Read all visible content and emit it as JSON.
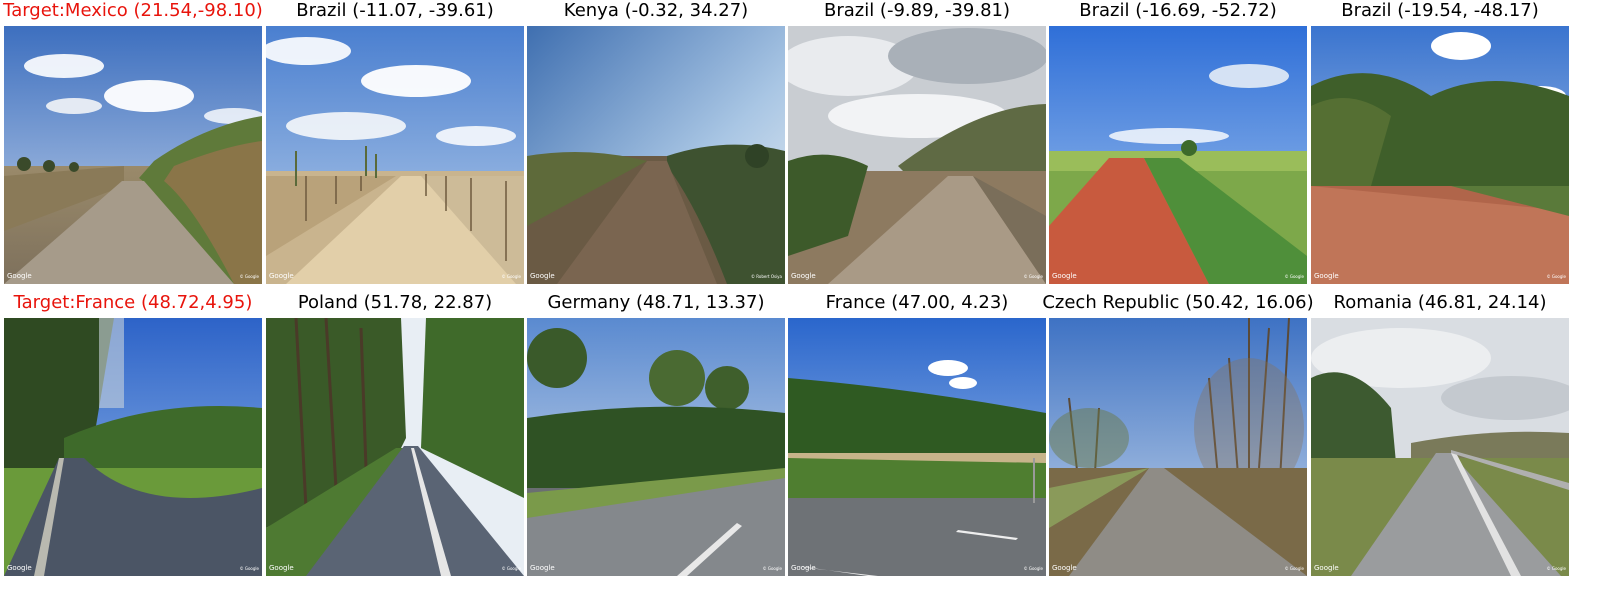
{
  "rows": [
    {
      "cells": [
        {
          "label": "Target:Mexico (21.54,-98.10)",
          "is_target": true,
          "scene": "dirt-road-hedge",
          "watermark_left": "Google",
          "watermark_right": "© Google"
        },
        {
          "label": "Brazil (-11.07, -39.61)",
          "is_target": false,
          "scene": "sand-road-fence",
          "watermark_left": "Google",
          "watermark_right": "© Google"
        },
        {
          "label": "Kenya (-0.32, 34.27)",
          "is_target": false,
          "scene": "dirt-track-savanna",
          "watermark_left": "Google",
          "watermark_right": "© Robert Osiya"
        },
        {
          "label": "Brazil (-9.89, -39.81)",
          "is_target": false,
          "scene": "dirt-road-hill",
          "watermark_left": "Google",
          "watermark_right": "© Google"
        },
        {
          "label": "Brazil (-16.69, -52.72)",
          "is_target": false,
          "scene": "red-dirt-road-field",
          "watermark_left": "Google",
          "watermark_right": "© Google"
        },
        {
          "label": "Brazil (-19.54, -48.17)",
          "is_target": false,
          "scene": "red-dirt-bush",
          "watermark_left": "Google",
          "watermark_right": "© Google"
        }
      ]
    },
    {
      "cells": [
        {
          "label": "Target:France (48.72,4.95)",
          "is_target": true,
          "scene": "paved-lane-trees",
          "watermark_left": "Google",
          "watermark_right": "© Google"
        },
        {
          "label": "Poland (51.78, 22.87)",
          "is_target": false,
          "scene": "forest-road",
          "watermark_left": "Google",
          "watermark_right": "© Google"
        },
        {
          "label": "Germany (48.71, 13.37)",
          "is_target": false,
          "scene": "road-hedge-trees",
          "watermark_left": "Google",
          "watermark_right": "© Google"
        },
        {
          "label": "France (47.00, 4.23)",
          "is_target": false,
          "scene": "road-treeline-field",
          "watermark_left": "Google",
          "watermark_right": "© Google"
        },
        {
          "label": "Czech Republic (50.42, 16.06)",
          "is_target": false,
          "scene": "road-bare-trees",
          "watermark_left": "Google",
          "watermark_right": "© Google"
        },
        {
          "label": "Romania (46.81, 24.14)",
          "is_target": false,
          "scene": "road-hills-overcast",
          "watermark_left": "Google",
          "watermark_right": "© Google"
        }
      ]
    }
  ]
}
